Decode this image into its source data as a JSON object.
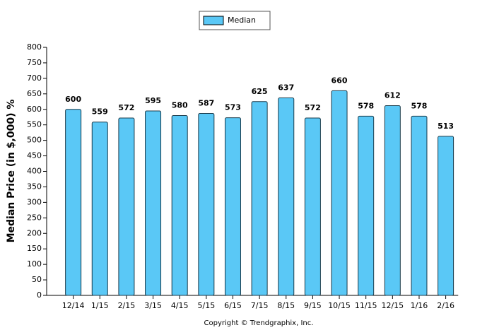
{
  "chart_data": {
    "type": "bar",
    "y_label": "Median Price (in $,000) %",
    "footer": "Copyright © Trendgraphix, Inc.",
    "categories": [
      "12/14",
      "1/15",
      "2/15",
      "3/15",
      "4/15",
      "5/15",
      "6/15",
      "7/15",
      "8/15",
      "9/15",
      "10/15",
      "11/15",
      "12/15",
      "1/16",
      "2/16"
    ],
    "series": [
      {
        "name": "Median",
        "color": "#5ac8f6",
        "values": [
          600,
          559,
          572,
          595,
          580,
          587,
          573,
          625,
          637,
          572,
          660,
          578,
          612,
          578,
          513
        ]
      }
    ],
    "ylim": [
      0,
      800
    ],
    "yticks": [
      0,
      50,
      100,
      150,
      200,
      250,
      300,
      350,
      400,
      450,
      500,
      550,
      600,
      650,
      700,
      750,
      800
    ],
    "grid": false,
    "legend": "top"
  }
}
